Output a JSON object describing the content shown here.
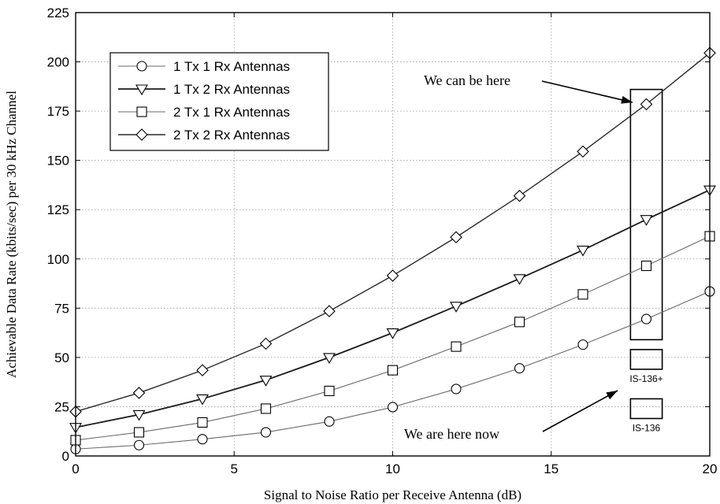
{
  "chart_data": {
    "type": "line",
    "xlabel": "Signal to Noise Ratio per Receive Antenna (dB)",
    "ylabel": "Achievable Data Rate (kbits/sec) per 30 kHz Channel",
    "xlim": [
      0,
      20
    ],
    "ylim": [
      0,
      225
    ],
    "xticks": [
      "0",
      "5",
      "10",
      "15",
      "20"
    ],
    "yticks": [
      "0",
      "25",
      "50",
      "75",
      "100",
      "125",
      "150",
      "175",
      "200",
      "225"
    ],
    "grid": true,
    "legend_position": "top-left",
    "x": [
      0,
      2,
      4,
      6,
      8,
      10,
      12,
      14,
      16,
      18,
      20
    ],
    "series": [
      {
        "name": "1 Tx 1 Rx Antennas",
        "marker": "circle",
        "color": "#6a6a6a",
        "line_width": 1.1,
        "values": [
          3.5,
          5.5,
          8.5,
          12,
          17.5,
          24.8,
          34,
          44.5,
          56.5,
          69.5,
          83.5
        ]
      },
      {
        "name": "1 Tx 2 Rx Antennas",
        "marker": "triangle-down",
        "color": "#1a1a1a",
        "line_width": 1.8,
        "values": [
          14.5,
          21,
          29,
          38.5,
          50,
          62.5,
          76,
          90,
          104.5,
          120,
          135
        ]
      },
      {
        "name": "2 Tx 1 Rx Antennas",
        "marker": "square",
        "color": "#6a6a6a",
        "line_width": 1.1,
        "values": [
          8,
          12,
          17,
          24,
          33,
          43.5,
          55.5,
          68,
          82,
          96.5,
          111.5
        ]
      },
      {
        "name": "2 Tx 2 Rx Antennas",
        "marker": "diamond",
        "color": "#2a2a2a",
        "line_width": 1.4,
        "values": [
          22.5,
          32,
          43.5,
          57,
          73.5,
          91.5,
          111,
          132,
          154.5,
          178.5,
          204.5
        ]
      }
    ],
    "annotations": [
      {
        "text": "We can be here",
        "arrow_to_x": 18,
        "arrow_to_y": 178
      },
      {
        "text": "We are here now",
        "arrow_to_x": 17.5,
        "arrow_to_y": 29
      }
    ],
    "highlight_box": {
      "x_range": [
        17.5,
        18.5
      ],
      "y_range": [
        59,
        186
      ]
    },
    "labeled_boxes": [
      {
        "label": "IS-136+",
        "x_range": [
          17.5,
          18.5
        ],
        "y_range": [
          44,
          54
        ]
      },
      {
        "label": "IS-136",
        "x_range": [
          17.5,
          18.5
        ],
        "y_range": [
          19,
          29
        ]
      }
    ]
  }
}
